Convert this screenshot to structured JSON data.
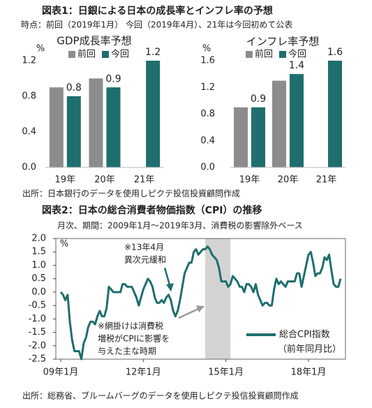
{
  "figure1": {
    "title": "図表1：日銀による日本の成長率とインフレ率の予想",
    "subtitle": "時点：前回（2019年1月） 今回（2019年4月）、21年は今回初めて公表",
    "source": "出所：日本銀行のデータを使用しピクテ投信投資顧問作成"
  },
  "chart_data": [
    {
      "type": "bar",
      "title": "GDP成長率予想",
      "y_unit": "%",
      "categories": [
        "19年",
        "20年",
        "21年"
      ],
      "series": [
        {
          "name": "前回",
          "color": "#8c8c8c",
          "values": [
            0.9,
            1.0,
            null
          ]
        },
        {
          "name": "今回",
          "color": "#1f6e6e",
          "values": [
            0.8,
            0.9,
            1.2
          ],
          "show_values": true
        }
      ],
      "ylim": [
        0,
        1.2
      ],
      "yticks": [
        {
          "value": 0,
          "label": "0.0"
        },
        0.4,
        0.8,
        1.2
      ]
    },
    {
      "type": "bar",
      "title": "インフレ率予想",
      "y_unit": "%",
      "categories": [
        "19年",
        "20年",
        "21年"
      ],
      "series": [
        {
          "name": "前回",
          "color": "#8c8c8c",
          "values": [
            0.9,
            1.3,
            null
          ]
        },
        {
          "name": "今回",
          "color": "#1f6e6e",
          "values": [
            0.9,
            1.4,
            1.6
          ],
          "show_values": true
        }
      ],
      "ylim": [
        0,
        1.6
      ],
      "yticks": [
        {
          "value": 0,
          "label": "0.0"
        },
        0.4,
        0.8,
        1.2,
        1.6
      ]
    },
    {
      "type": "line",
      "title": "図表2：日本の総合消費者物価指数（CPI）の推移",
      "subtitle": "月次、期間：2009年1月～2019年3月、消費税の影響除外ベース",
      "source": "出所：総務省、ブルームバーグのデータを使用しピクテ投信投資顧問作成",
      "y_unit": "%",
      "annotations": [
        [
          "※13年4月",
          "異次元緩和"
        ],
        [
          "※網掛けは消費税",
          "増税がCPIに影響を",
          "与えた主な時期"
        ]
      ],
      "legend_note": "（前年同月比）",
      "shade": {
        "from": 63,
        "to": 74,
        "color": "#c8c8c8"
      },
      "categories": [
        "09年1月",
        null,
        null,
        null,
        null,
        null,
        null,
        null,
        null,
        null,
        null,
        null,
        null,
        null,
        null,
        null,
        null,
        null,
        null,
        null,
        null,
        null,
        null,
        null,
        null,
        null,
        null,
        null,
        null,
        null,
        null,
        null,
        null,
        null,
        null,
        null,
        "12年1月",
        null,
        null,
        null,
        null,
        null,
        null,
        null,
        null,
        null,
        null,
        null,
        null,
        null,
        null,
        null,
        null,
        null,
        null,
        null,
        null,
        null,
        null,
        null,
        null,
        null,
        null,
        null,
        null,
        null,
        null,
        null,
        null,
        null,
        null,
        null,
        "15年1月",
        null,
        null,
        null,
        null,
        null,
        null,
        null,
        null,
        null,
        null,
        null,
        null,
        null,
        null,
        null,
        null,
        null,
        null,
        null,
        null,
        null,
        null,
        null,
        null,
        null,
        null,
        null,
        null,
        null,
        null,
        null,
        null,
        null,
        null,
        null,
        "18年1月",
        null,
        null,
        null,
        null,
        null,
        null,
        null,
        null,
        null,
        null,
        null,
        null,
        null,
        null
      ],
      "series": [
        {
          "name": "総合CPI指数",
          "color": "#1f6e6e",
          "values": [
            0.0,
            -0.1,
            -0.3,
            -0.1,
            -1.1,
            -1.8,
            -2.2,
            -2.2,
            -2.2,
            -2.5,
            -1.9,
            -1.7,
            -1.3,
            -1.1,
            -1.1,
            -1.2,
            -0.9,
            -0.7,
            -0.9,
            -0.9,
            -0.6,
            0.2,
            0.1,
            0.0,
            0.0,
            0.0,
            0.0,
            0.3,
            0.3,
            0.2,
            0.2,
            0.2,
            0.0,
            -0.2,
            -0.5,
            -0.2,
            0.1,
            0.3,
            0.5,
            0.4,
            0.2,
            -0.2,
            -0.4,
            -0.4,
            -0.3,
            -0.4,
            -0.2,
            -0.1,
            -0.3,
            -0.7,
            -0.9,
            -0.7,
            -0.3,
            0.2,
            0.7,
            0.9,
            1.1,
            1.1,
            1.5,
            1.6,
            1.4,
            1.5,
            1.6,
            1.6,
            1.7,
            1.6,
            1.4,
            1.3,
            1.2,
            0.9,
            0.4,
            0.4,
            0.4,
            0.2,
            0.3,
            0.6,
            0.5,
            0.4,
            0.2,
            0.2,
            0.0,
            0.3,
            0.3,
            0.2,
            0.0,
            0.3,
            -0.1,
            -0.3,
            -0.5,
            -0.4,
            -0.4,
            -0.5,
            -0.5,
            0.1,
            0.5,
            0.3,
            0.4,
            0.3,
            0.2,
            0.4,
            0.4,
            0.4,
            0.4,
            0.7,
            0.7,
            0.2,
            0.6,
            1.0,
            1.4,
            1.5,
            1.1,
            0.6,
            0.7,
            0.7,
            0.9,
            1.3,
            1.2,
            1.4,
            0.8,
            0.3,
            0.2,
            0.2,
            0.5
          ]
        }
      ],
      "ylim": [
        -2.5,
        2.0
      ],
      "yticks": [
        {
          "value": 2,
          "label": "2.0"
        },
        1.5,
        {
          "value": 1,
          "label": "1.0"
        },
        0.5,
        {
          "value": 0,
          "label": "0.0"
        },
        -0.5,
        {
          "value": -1,
          "label": "-1.0"
        },
        -1.5,
        {
          "value": -2,
          "label": "-2.0"
        },
        -2.5
      ]
    }
  ]
}
